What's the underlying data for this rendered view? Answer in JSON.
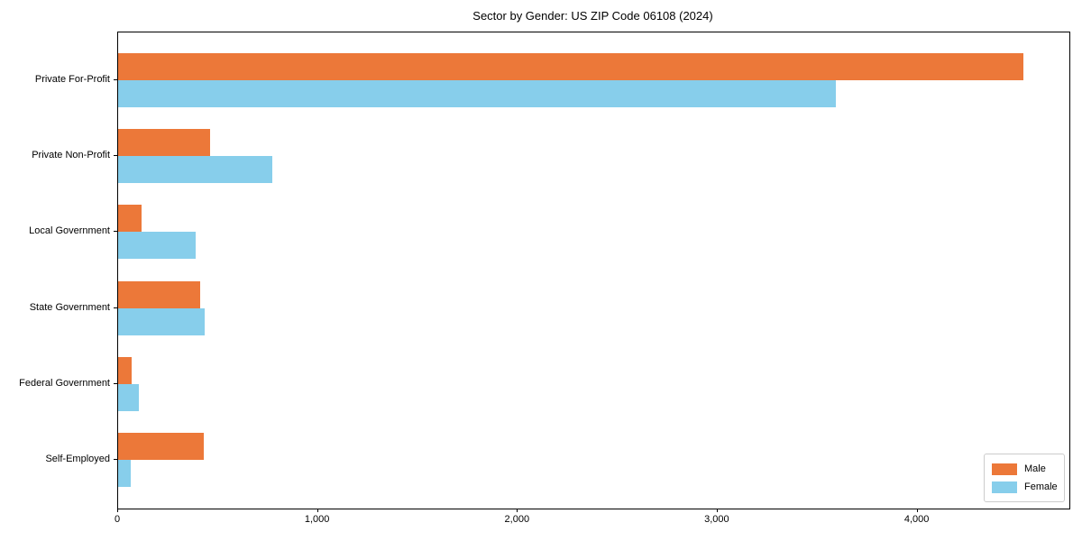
{
  "chart_data": {
    "type": "bar",
    "orientation": "horizontal",
    "title": "Sector by Gender: US ZIP Code 06108 (2024)",
    "xlabel": "",
    "ylabel": "",
    "categories": [
      "Private For-Profit",
      "Private Non-Profit",
      "Local Government",
      "State Government",
      "Federal Government",
      "Self-Employed"
    ],
    "series": [
      {
        "name": "Male",
        "color": "#ec7839",
        "values": [
          4530,
          460,
          118,
          410,
          68,
          428
        ]
      },
      {
        "name": "Female",
        "color": "#87ceeb",
        "values": [
          3590,
          770,
          388,
          432,
          104,
          63
        ]
      }
    ],
    "xlim": [
      0,
      4760
    ],
    "x_ticks": [
      0,
      1000,
      2000,
      3000,
      4000
    ],
    "x_tick_labels": [
      "0",
      "1,000",
      "2,000",
      "3,000",
      "4,000"
    ],
    "grid": false,
    "legend_position": "lower right"
  }
}
